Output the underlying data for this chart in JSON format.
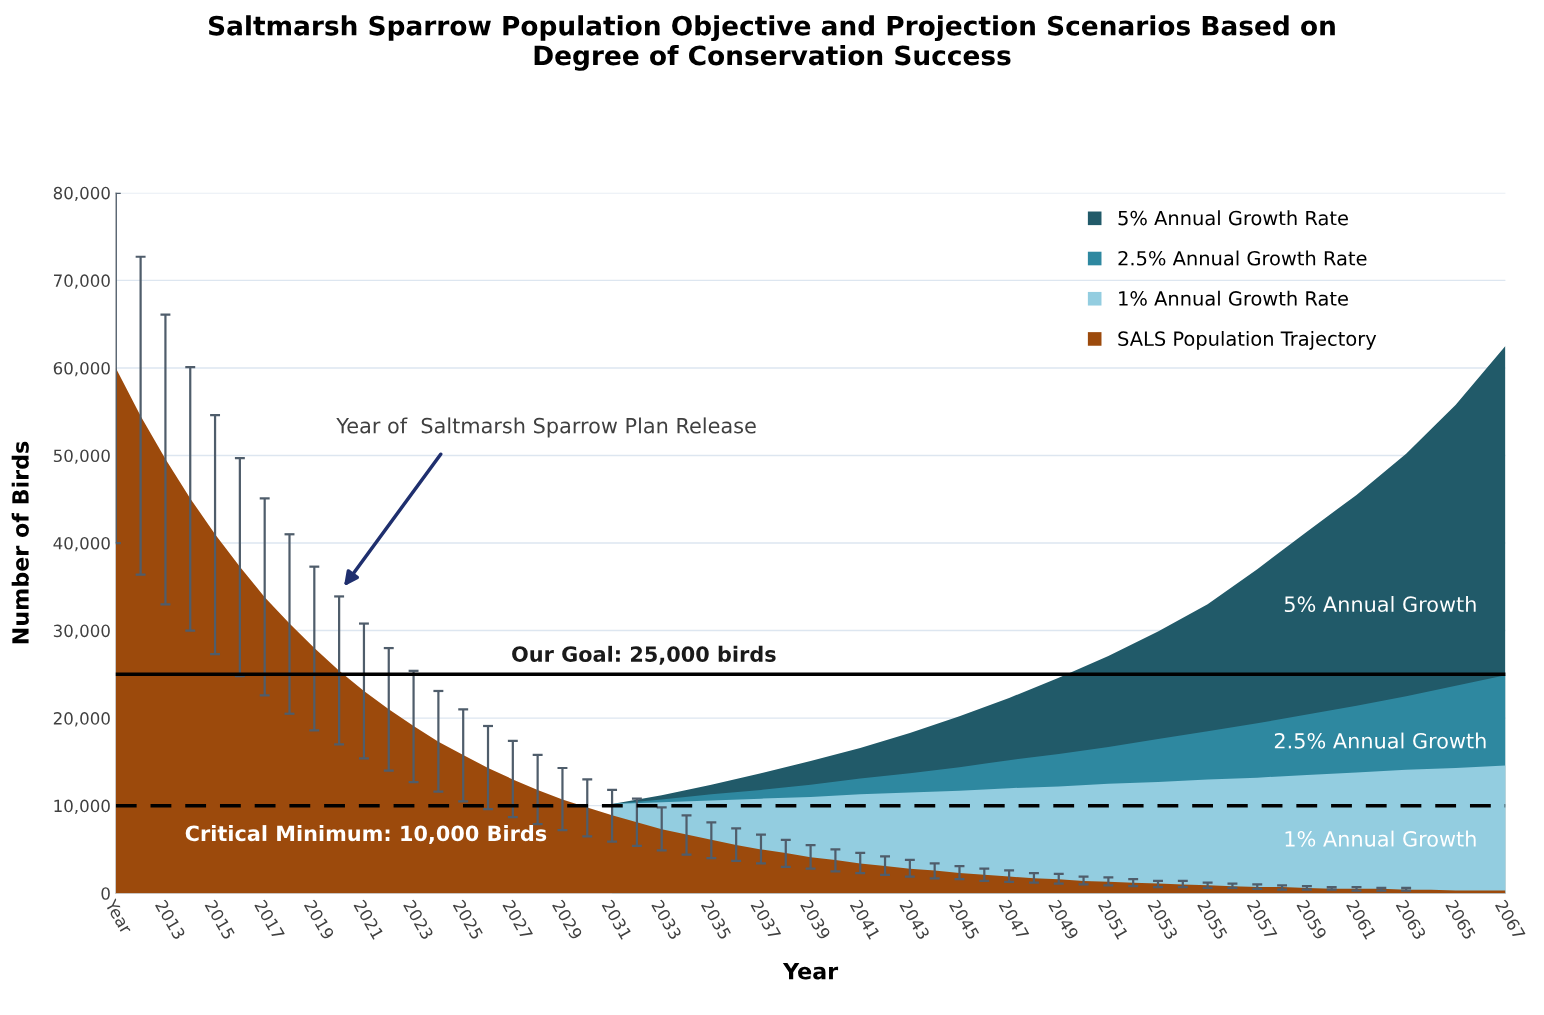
{
  "chart_data": {
    "type": "area",
    "title": "Saltmarsh Sparrow Population Objective and Projection Scenarios Based on\nDegree of Conservation Success",
    "xlabel": "Year",
    "ylabel": "Number of Birds",
    "x": [
      2011,
      2012,
      2013,
      2014,
      2015,
      2016,
      2017,
      2018,
      2019,
      2020,
      2021,
      2022,
      2023,
      2024,
      2025,
      2026,
      2027,
      2028,
      2029,
      2030,
      2031,
      2032,
      2033,
      2034,
      2035,
      2036,
      2037,
      2038,
      2039,
      2040,
      2041,
      2042,
      2043,
      2044,
      2045,
      2046,
      2047,
      2048,
      2049,
      2050,
      2051,
      2052,
      2053,
      2054,
      2055,
      2056,
      2057,
      2058,
      2059,
      2060,
      2061,
      2062,
      2063,
      2064,
      2065,
      2066,
      2067
    ],
    "xlim": [
      2011,
      2067
    ],
    "xticks": [
      {
        "value": 2011,
        "label": "Year"
      },
      2013,
      2015,
      2017,
      2019,
      2021,
      2023,
      2025,
      2027,
      2029,
      2031,
      2033,
      2035,
      2037,
      2039,
      2041,
      2043,
      2045,
      2047,
      2049,
      2051,
      2053,
      2055,
      2057,
      2059,
      2061,
      2063,
      2065,
      2067
    ],
    "ylim": [
      0,
      80000
    ],
    "yticks": [
      {
        "value": 0,
        "label": "0"
      },
      {
        "value": 10000,
        "label": "10,000"
      },
      {
        "value": 20000,
        "label": "20,000"
      },
      {
        "value": 30000,
        "label": "30,000"
      },
      {
        "value": 40000,
        "label": "40,000"
      },
      {
        "value": 50000,
        "label": "50,000"
      },
      {
        "value": 60000,
        "label": "60,000"
      },
      {
        "value": 70000,
        "label": "70,000"
      },
      {
        "value": 80000,
        "label": "80,000"
      }
    ],
    "grid": "y",
    "legend": "top right",
    "series": [
      {
        "name": "5% Annual Growth Rate",
        "color": "#215a69",
        "x": [
          2031,
          2033,
          2035,
          2037,
          2039,
          2041,
          2043,
          2045,
          2047,
          2049,
          2051,
          2053,
          2055,
          2057,
          2059,
          2061,
          2063,
          2065,
          2067
        ],
        "values": [
          10200,
          11200,
          12400,
          13700,
          15100,
          16600,
          18300,
          20200,
          22300,
          24600,
          27100,
          29900,
          33000,
          37000,
          41300,
          45500,
          50200,
          55800,
          62500
        ]
      },
      {
        "name": "2.5% Annual Growth Rate",
        "color": "#2e88a0",
        "x": [
          2031,
          2033,
          2035,
          2037,
          2039,
          2041,
          2043,
          2045,
          2047,
          2049,
          2051,
          2053,
          2055,
          2057,
          2059,
          2061,
          2063,
          2065,
          2067
        ],
        "values": [
          10200,
          10700,
          11300,
          11800,
          12400,
          13100,
          13700,
          14400,
          15200,
          15900,
          16700,
          17600,
          18500,
          19400,
          20400,
          21400,
          22500,
          23700,
          24900
        ]
      },
      {
        "name": "1% Annual Growth Rate",
        "color": "#93cde0",
        "x": [
          2031,
          2033,
          2035,
          2037,
          2039,
          2041,
          2043,
          2045,
          2047,
          2049,
          2051,
          2053,
          2055,
          2057,
          2059,
          2061,
          2063,
          2065,
          2067
        ],
        "values": [
          10200,
          10400,
          10600,
          10800,
          11000,
          11300,
          11500,
          11700,
          12000,
          12200,
          12500,
          12700,
          13000,
          13200,
          13500,
          13800,
          14100,
          14300,
          14600
        ]
      },
      {
        "name": "SALS Population Trajectory",
        "color": "#9c4a0c",
        "values": [
          60000,
          54500,
          49600,
          45100,
          41000,
          37300,
          33800,
          30800,
          28000,
          25400,
          23100,
          21000,
          19100,
          17300,
          15800,
          14300,
          13000,
          11800,
          10700,
          9800,
          8900,
          8100,
          7300,
          6700,
          6100,
          5500,
          5000,
          4600,
          4100,
          3800,
          3400,
          3100,
          2800,
          2600,
          2300,
          2100,
          1900,
          1700,
          1600,
          1400,
          1300,
          1200,
          1100,
          1000,
          900,
          800,
          700,
          700,
          600,
          500,
          500,
          500,
          400,
          400,
          300,
          300,
          300
        ],
        "errors": [
          [
            40000,
            80000
          ],
          [
            36400,
            72700
          ],
          [
            33000,
            66100
          ],
          [
            30000,
            60100
          ],
          [
            27300,
            54600
          ],
          [
            24800,
            49700
          ],
          [
            22600,
            45100
          ],
          [
            20500,
            41000
          ],
          [
            18600,
            37300
          ],
          [
            17000,
            33900
          ],
          [
            15400,
            30800
          ],
          [
            14000,
            28000
          ],
          [
            12700,
            25400
          ],
          [
            11600,
            23100
          ],
          [
            10500,
            21000
          ],
          [
            9600,
            19100
          ],
          [
            8700,
            17400
          ],
          [
            7900,
            15800
          ],
          [
            7200,
            14300
          ],
          [
            6500,
            13000
          ],
          [
            5900,
            11800
          ],
          [
            5400,
            10800
          ],
          [
            4900,
            9800
          ],
          [
            4400,
            8900
          ],
          [
            4000,
            8100
          ],
          [
            3700,
            7400
          ],
          [
            3400,
            6700
          ],
          [
            3000,
            6100
          ],
          [
            2800,
            5500
          ],
          [
            2500,
            5000
          ],
          [
            2300,
            4600
          ],
          [
            2100,
            4200
          ],
          [
            1900,
            3800
          ],
          [
            1700,
            3400
          ],
          [
            1600,
            3100
          ],
          [
            1400,
            2800
          ],
          [
            1300,
            2600
          ],
          [
            1200,
            2300
          ],
          [
            1100,
            2200
          ],
          [
            1000,
            1900
          ],
          [
            900,
            1800
          ],
          [
            800,
            1600
          ],
          [
            700,
            1400
          ],
          [
            700,
            1400
          ],
          [
            600,
            1200
          ],
          [
            600,
            1100
          ],
          [
            500,
            1000
          ],
          [
            400,
            900
          ],
          [
            400,
            800
          ],
          [
            400,
            700
          ],
          [
            300,
            700
          ],
          [
            300,
            600
          ],
          [
            300,
            600
          ],
          null,
          null,
          null,
          null
        ]
      }
    ],
    "ref_lines": [
      {
        "axis": "y",
        "value": 25000,
        "label": "Our Goal: 25,000 birds",
        "color": "#000000",
        "line_style": "solid"
      },
      {
        "axis": "y",
        "value": 10000,
        "label": "Critical Minimum: 10,000 Birds",
        "color": "#000000",
        "line_style": "dashed"
      }
    ],
    "annotations": [
      "Year of  Saltmarsh Sparrow Plan Release",
      "5% Annual Growth",
      "2.5% Annual Growth",
      "1% Annual Growth"
    ]
  }
}
